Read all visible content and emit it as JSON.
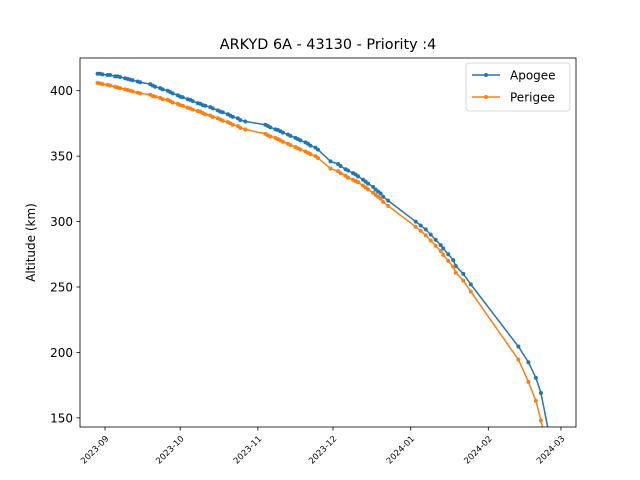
{
  "chart_data": {
    "type": "line",
    "title": "ARKYD 6A - 43130 - Priority :4",
    "xlabel": "",
    "ylabel": "Altitude (km)",
    "x_type": "date",
    "xlim": [
      "2023-08-22",
      "2024-03-07"
    ],
    "ylim": [
      143,
      425
    ],
    "x_ticks": [
      "2023-09-01",
      "2023-10-01",
      "2023-11-01",
      "2023-12-01",
      "2024-01-01",
      "2024-02-01",
      "2024-03-01"
    ],
    "x_tick_labels": [
      "2023-09",
      "2023-10",
      "2023-11",
      "2023-12",
      "2024-01",
      "2024-02",
      "2024-03"
    ],
    "y_ticks": [
      150,
      200,
      250,
      300,
      350,
      400
    ],
    "y_tick_labels": [
      "150",
      "200",
      "250",
      "300",
      "350",
      "400"
    ],
    "grid": false,
    "legend_position": "top-right",
    "dates": [
      "2023-08-29",
      "2023-08-30",
      "2023-08-31",
      "2023-09-02",
      "2023-09-03",
      "2023-09-05",
      "2023-09-06",
      "2023-09-07",
      "2023-09-09",
      "2023-09-10",
      "2023-09-11",
      "2023-09-12",
      "2023-09-14",
      "2023-09-15",
      "2023-09-19",
      "2023-09-20",
      "2023-09-21",
      "2023-09-23",
      "2023-09-24",
      "2023-09-26",
      "2023-09-27",
      "2023-09-28",
      "2023-09-30",
      "2023-10-01",
      "2023-10-02",
      "2023-10-04",
      "2023-10-05",
      "2023-10-06",
      "2023-10-08",
      "2023-10-09",
      "2023-10-10",
      "2023-10-11",
      "2023-10-13",
      "2023-10-14",
      "2023-10-16",
      "2023-10-17",
      "2023-10-18",
      "2023-10-20",
      "2023-10-21",
      "2023-10-22",
      "2023-10-24",
      "2023-10-25",
      "2023-10-27",
      "2023-11-04",
      "2023-11-05",
      "2023-11-06",
      "2023-11-08",
      "2023-11-09",
      "2023-11-10",
      "2023-11-11",
      "2023-11-13",
      "2023-11-14",
      "2023-11-16",
      "2023-11-17",
      "2023-11-18",
      "2023-11-20",
      "2023-11-21",
      "2023-11-22",
      "2023-11-24",
      "2023-11-25",
      "2023-11-30",
      "2023-12-03",
      "2023-12-04",
      "2023-12-06",
      "2023-12-07",
      "2023-12-09",
      "2023-12-10",
      "2023-12-11",
      "2023-12-13",
      "2023-12-14",
      "2023-12-15",
      "2023-12-17",
      "2023-12-18",
      "2023-12-19",
      "2023-12-20",
      "2023-12-21",
      "2023-12-23",
      "2024-01-03",
      "2024-01-05",
      "2024-01-07",
      "2024-01-09",
      "2024-01-11",
      "2024-01-13",
      "2024-01-14",
      "2024-01-16",
      "2024-01-18",
      "2024-01-19",
      "2024-01-22",
      "2024-01-25",
      "2024-02-13",
      "2024-02-17",
      "2024-02-20",
      "2024-02-22",
      "2024-02-25"
    ],
    "series": [
      {
        "name": "Apogee",
        "color": "#1f77b4",
        "values": [
          413,
          413,
          412.5,
          412,
          412,
          411,
          411,
          410.5,
          409.5,
          409,
          408.5,
          408,
          407,
          406.5,
          405,
          404,
          403,
          402,
          401,
          400,
          399,
          398,
          396.5,
          395.5,
          395,
          393.5,
          393,
          392,
          390.5,
          390,
          389,
          388.5,
          387.5,
          386.5,
          385,
          384,
          383.5,
          382,
          381,
          380,
          379,
          377.5,
          376.5,
          374,
          373,
          372,
          370.5,
          370,
          369,
          368,
          366.5,
          365.5,
          364,
          363,
          362,
          360.5,
          359.5,
          358,
          356.5,
          355,
          346,
          344,
          342.5,
          340,
          339,
          337,
          336,
          334.5,
          332,
          330.5,
          329,
          326.5,
          324.5,
          323,
          321.5,
          319,
          316,
          300,
          297,
          294,
          290,
          286,
          282,
          279.5,
          275,
          270.5,
          266,
          260,
          252,
          204.5,
          192.5,
          180.5,
          169,
          140
        ]
      },
      {
        "name": "Perigee",
        "color": "#ff7f0e",
        "values": [
          406,
          405.5,
          405,
          404.5,
          404,
          403,
          402.5,
          402,
          401,
          400.5,
          400,
          399.5,
          398.5,
          398,
          397,
          396,
          395.5,
          394.5,
          393.5,
          393,
          392,
          391,
          390,
          389,
          388.5,
          387,
          386.5,
          385.5,
          384.5,
          384,
          383,
          382,
          381,
          380,
          379,
          378,
          377,
          376,
          375,
          374,
          373,
          371.5,
          370.5,
          367,
          366,
          365,
          364,
          363,
          362,
          361,
          359.5,
          358.5,
          357,
          356,
          355,
          353.5,
          352.5,
          351.5,
          350,
          348.5,
          340.5,
          338.5,
          337,
          335,
          333.5,
          332,
          331,
          330,
          327.5,
          326,
          324.5,
          322,
          320.5,
          319,
          317.5,
          315,
          312,
          296,
          293,
          289.5,
          285.5,
          281.5,
          277.5,
          274.5,
          270,
          265.5,
          261,
          255,
          246.5,
          194.5,
          177.5,
          163,
          148,
          123
        ]
      }
    ]
  }
}
